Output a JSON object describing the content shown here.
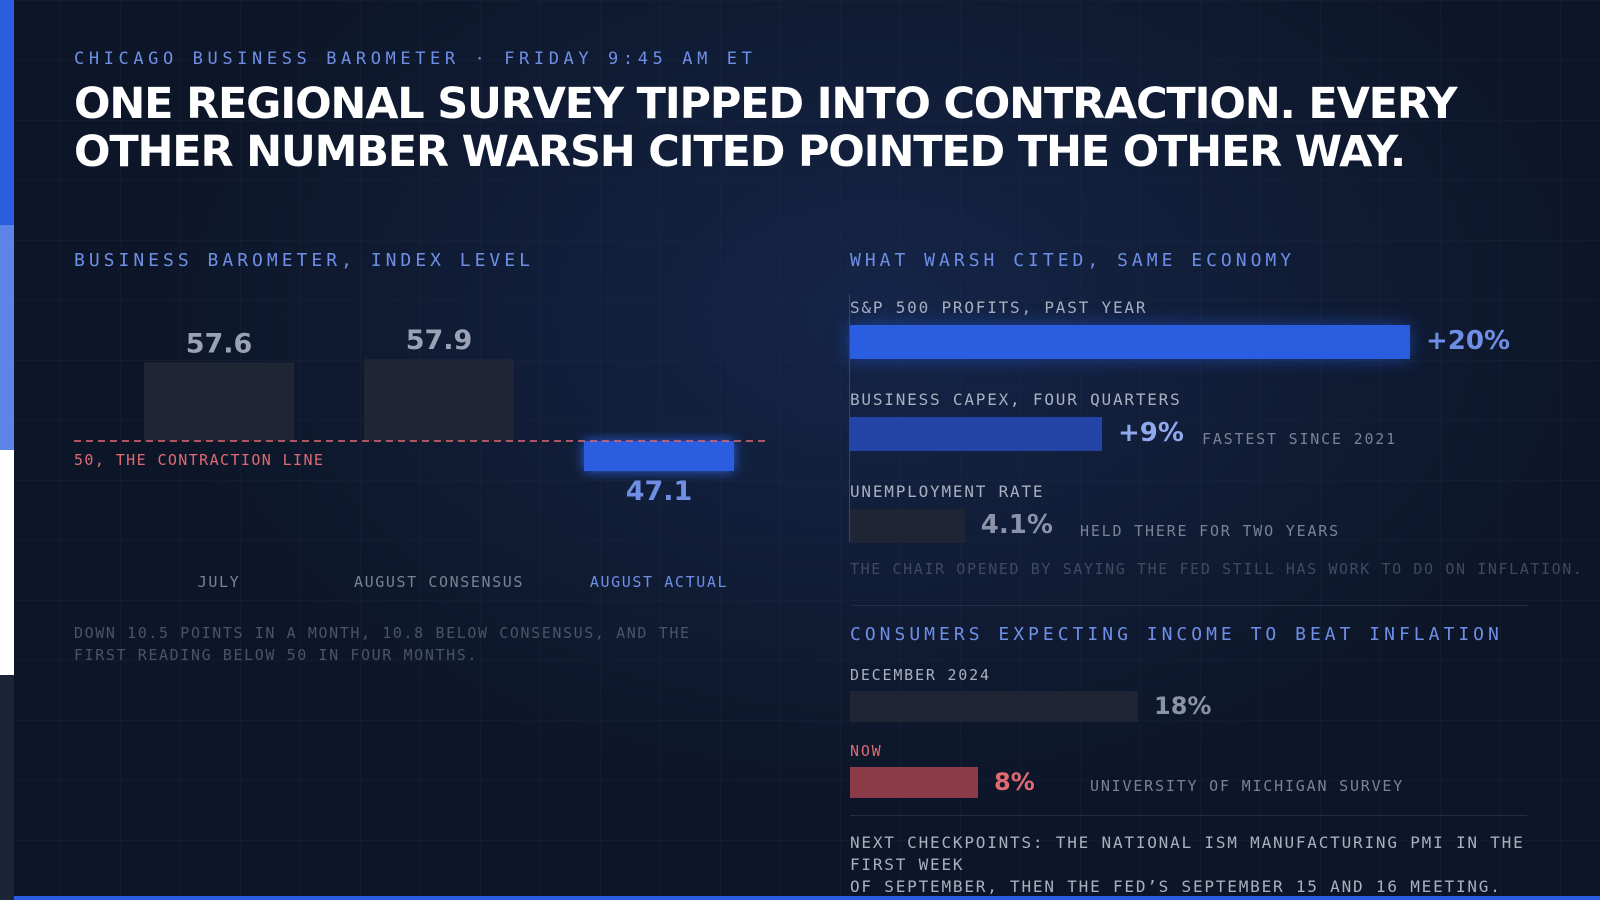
{
  "kicker": "CHICAGO BUSINESS BAROMETER · FRIDAY 9:45 AM ET",
  "headline": "ONE REGIONAL SURVEY TIPPED INTO CONTRACTION. EVERY OTHER NUMBER WARSH CITED POINTED THE OTHER WAY.",
  "colors": {
    "accent": "#2a5de0",
    "accent_light": "#6f8fe6",
    "contraction": "#e06a72",
    "neutral_bar": "#1f2535"
  },
  "left": {
    "section_title": "BUSINESS BAROMETER, INDEX LEVEL",
    "contraction_label": "50, THE CONTRACTION LINE",
    "note": "DOWN 10.5 POINTS IN A MONTH, 10.8 BELOW CONSENSUS, AND THE FIRST READING BELOW 50 IN FOUR MONTHS."
  },
  "chart_data": {
    "type": "bar",
    "title": "BUSINESS BAROMETER, INDEX LEVEL",
    "categories": [
      "JULY",
      "AUGUST CONSENSUS",
      "AUGUST ACTUAL"
    ],
    "values": [
      57.6,
      57.9,
      47.1
    ],
    "value_labels": [
      "57.6",
      "57.9",
      "47.1"
    ],
    "baseline": 50,
    "baseline_label": "50, THE CONTRACTION LINE"
  },
  "right": {
    "section_title": "WHAT WARSH CITED, SAME ECONOMY",
    "metrics": [
      {
        "label": "S&P 500 PROFITS, PAST YEAR",
        "value": 20,
        "display": "+20%",
        "note": ""
      },
      {
        "label": "BUSINESS CAPEX, FOUR QUARTERS",
        "value": 9,
        "display": "+9%",
        "note": "FASTEST SINCE 2021"
      },
      {
        "label": "UNEMPLOYMENT RATE",
        "value": 4.1,
        "display": "4.1%",
        "note": "HELD THERE FOR TWO YEARS"
      }
    ],
    "chair_note": "THE CHAIR OPENED BY SAYING THE FED STILL HAS WORK TO DO ON INFLATION.",
    "consumer_title": "CONSUMERS EXPECTING INCOME TO BEAT INFLATION",
    "consumer": [
      {
        "label": "DECEMBER 2024",
        "value": 18,
        "display": "18%"
      },
      {
        "label": "NOW",
        "value": 8,
        "display": "8%"
      }
    ],
    "consumer_source": "UNIVERSITY OF MICHIGAN SURVEY",
    "checkpoints_line1": "NEXT CHECKPOINTS: THE NATIONAL ISM MANUFACTURING PMI IN THE FIRST WEEK",
    "checkpoints_line2": "OF SEPTEMBER, THEN THE FED’S SEPTEMBER 15 AND 16 MEETING."
  }
}
